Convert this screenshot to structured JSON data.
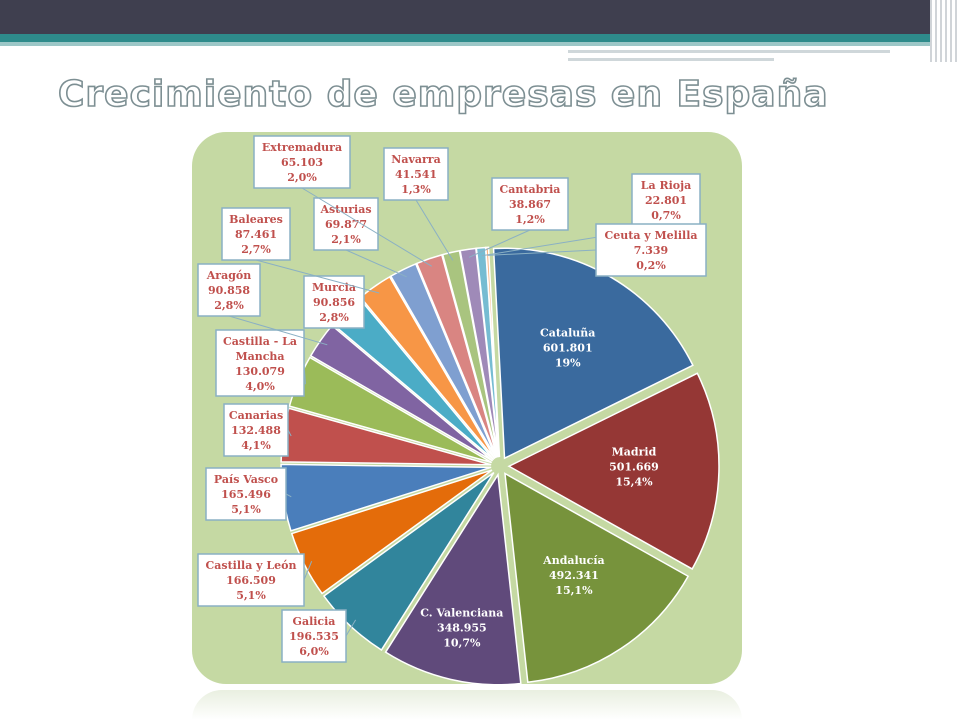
{
  "title": "Crecimiento de empresas en España",
  "colors": {
    "accent": "#2e8b8b",
    "topbar": "#3f3f4f",
    "chart_bg": "#c5d9a3",
    "label_text": "#c0504d",
    "label_border": "#8ab0c4"
  },
  "chart_data": {
    "type": "pie",
    "title": "",
    "slices": [
      {
        "label": "Cataluña",
        "value": "601.801",
        "pct": "19%",
        "share": 18.5,
        "color": "#3a6a9e"
      },
      {
        "label": "Madrid",
        "value": "501.669",
        "pct": "15,4%",
        "share": 15.4,
        "color": "#953735"
      },
      {
        "label": "Andalucía",
        "value": "492.341",
        "pct": "15,1%",
        "share": 15.1,
        "color": "#77933c"
      },
      {
        "label": "C. Valenciana",
        "value": "348.955",
        "pct": "10,7%",
        "share": 10.7,
        "color": "#604a7b"
      },
      {
        "label": "Galicia",
        "value": "196.535",
        "pct": "6,0%",
        "share": 6.0,
        "color": "#31859c"
      },
      {
        "label": "Castilla y León",
        "value": "166.509",
        "pct": "5,1%",
        "share": 5.1,
        "color": "#e46c0a"
      },
      {
        "label": "País Vasco",
        "value": "165.496",
        "pct": "5,1%",
        "share": 5.1,
        "color": "#4a7ebb"
      },
      {
        "label": "Canarias",
        "value": "132.488",
        "pct": "4,1%",
        "share": 4.1,
        "color": "#c0504d"
      },
      {
        "label": "Castilla - La Mancha",
        "value": "130.079",
        "pct": "4,0%",
        "share": 4.0,
        "color": "#9bbb59"
      },
      {
        "label": "Aragón",
        "value": "90.858",
        "pct": "2,8%",
        "share": 2.8,
        "color": "#8064a2"
      },
      {
        "label": "Murcia",
        "value": "90.856",
        "pct": "2,8%",
        "share": 2.8,
        "color": "#4bacc6"
      },
      {
        "label": "Baleares",
        "value": "87.461",
        "pct": "2,7%",
        "share": 2.7,
        "color": "#f79646"
      },
      {
        "label": "Asturias",
        "value": "69.877",
        "pct": "2,1%",
        "share": 2.1,
        "color": "#7f9fd0"
      },
      {
        "label": "Extremadura",
        "value": "65.103",
        "pct": "2,0%",
        "share": 2.0,
        "color": "#d98582"
      },
      {
        "label": "Navarra",
        "value": "41.541",
        "pct": "1,3%",
        "share": 1.3,
        "color": "#a9c47f"
      },
      {
        "label": "Cantabria",
        "value": "38.867",
        "pct": "1,2%",
        "share": 1.2,
        "color": "#9f8ab8"
      },
      {
        "label": "La Rioja",
        "value": "22.801",
        "pct": "0,7%",
        "share": 0.7,
        "color": "#76bcd2"
      },
      {
        "label": "Ceuta y Melilla",
        "value": "7.339",
        "pct": "0,2%",
        "share": 0.2,
        "color": "#f9b380"
      }
    ]
  }
}
